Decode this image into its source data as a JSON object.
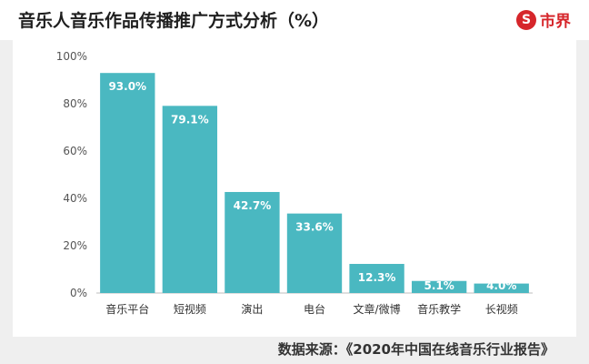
{
  "header": {
    "title": "音乐人音乐作品传播推广方式分析（%）",
    "brand": "市界",
    "brand_icon": "circle-s-logo-icon"
  },
  "source": "数据来源：《2020年中国在线音乐行业报告》",
  "colors": {
    "bar": "#4ab8c1",
    "brand": "#d6262b",
    "background": "#efefef"
  },
  "chart_data": {
    "type": "bar",
    "title": "音乐人音乐作品传播推广方式分析（%）",
    "categories": [
      "音乐平台",
      "短视频",
      "演出",
      "电台",
      "文章/微博",
      "音乐教学",
      "长视频"
    ],
    "values": [
      93.0,
      79.1,
      42.7,
      33.6,
      12.3,
      5.1,
      4.0
    ],
    "value_labels": [
      "93.0%",
      "79.1%",
      "42.7%",
      "33.6%",
      "12.3%",
      "5.1%",
      "4.0%"
    ],
    "y_ticks": [
      "0%",
      "20%",
      "40%",
      "60%",
      "80%",
      "100%"
    ],
    "ylim": [
      0,
      100
    ],
    "xlabel": "",
    "ylabel": "",
    "grid": false,
    "legend": "none"
  }
}
